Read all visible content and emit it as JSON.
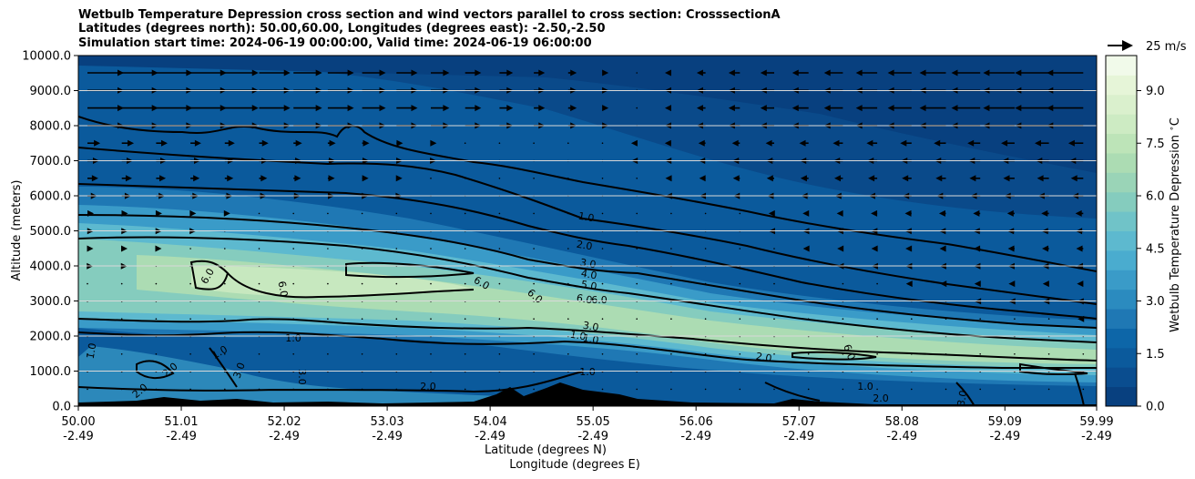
{
  "title_lines": [
    "Wetbulb Temperature Depression cross section and wind vectors parallel to cross section: CrosssectionA",
    "Latitudes (degrees north): 50.00,60.00, Longitudes (degrees east): -2.50,-2.50",
    "Simulation start time: 2024-06-19 00:00:00, Valid time: 2024-06-19 06:00:00"
  ],
  "chart_data": {
    "type": "heatmap",
    "title": "Wetbulb Temperature Depression cross section and wind vectors parallel to cross section: CrosssectionA",
    "ylabel": "Altitude (meters)",
    "xlabel_lines": [
      "Latitude (degrees N)",
      "Longitude (degrees E)"
    ],
    "ylim": [
      0,
      10000
    ],
    "xlim": [
      50.0,
      59.99
    ],
    "yticks": [
      "0.0",
      "1000.0",
      "2000.0",
      "3000.0",
      "4000.0",
      "5000.0",
      "6000.0",
      "7000.0",
      "8000.0",
      "9000.0",
      "10000.0"
    ],
    "xticks": [
      {
        "lat": "50.00",
        "lon": "-2.49"
      },
      {
        "lat": "51.01",
        "lon": "-2.49"
      },
      {
        "lat": "52.02",
        "lon": "-2.49"
      },
      {
        "lat": "53.03",
        "lon": "-2.49"
      },
      {
        "lat": "54.04",
        "lon": "-2.49"
      },
      {
        "lat": "55.05",
        "lon": "-2.49"
      },
      {
        "lat": "56.06",
        "lon": "-2.49"
      },
      {
        "lat": "57.07",
        "lon": "-2.49"
      },
      {
        "lat": "58.08",
        "lon": "-2.49"
      },
      {
        "lat": "59.09",
        "lon": "-2.49"
      },
      {
        "lat": "59.99",
        "lon": "-2.49"
      }
    ],
    "grid": "horizontal",
    "colorbar": {
      "label": "Wetbulb Temperature Depression $^\\circ$C",
      "range": [
        0,
        10
      ],
      "ticks": [
        "0.0",
        "1.5",
        "3.0",
        "4.5",
        "6.0",
        "7.5",
        "9.0"
      ],
      "tick_values": [
        0,
        1.5,
        3.0,
        4.5,
        6.0,
        7.5,
        9.0
      ],
      "colors": [
        "#08407f",
        "#0a4d8f",
        "#0b5a9c",
        "#0d66a8",
        "#1f78b4",
        "#2b8bbf",
        "#3a9bc8",
        "#4aaccf",
        "#5db9cf",
        "#70c3c8",
        "#85ccbe",
        "#9ad4b7",
        "#acdcb3",
        "#bde4b8",
        "#cdebc3",
        "#daf0cd",
        "#e6f5d8",
        "#f1faea"
      ]
    },
    "wind_key": {
      "label": "25 m/s",
      "speed": 25
    },
    "contour_levels": [
      1.0,
      2.0,
      3.0,
      4.0,
      5.0,
      6.0
    ],
    "contour_labels": [
      "1.0",
      "2.0",
      "3.0",
      "4.0",
      "5.0",
      "6.0",
      "6.0",
      "6.0",
      "6.0",
      "6.0",
      "6.0",
      "1.0",
      "1.0",
      "1.0",
      "1.0",
      "1.0",
      "2.0",
      "2.0",
      "2.0",
      "3.0",
      "3.0",
      "3.0",
      "1.0",
      "2.0",
      "6.0",
      "1.0",
      "2.0",
      "3.0"
    ]
  }
}
